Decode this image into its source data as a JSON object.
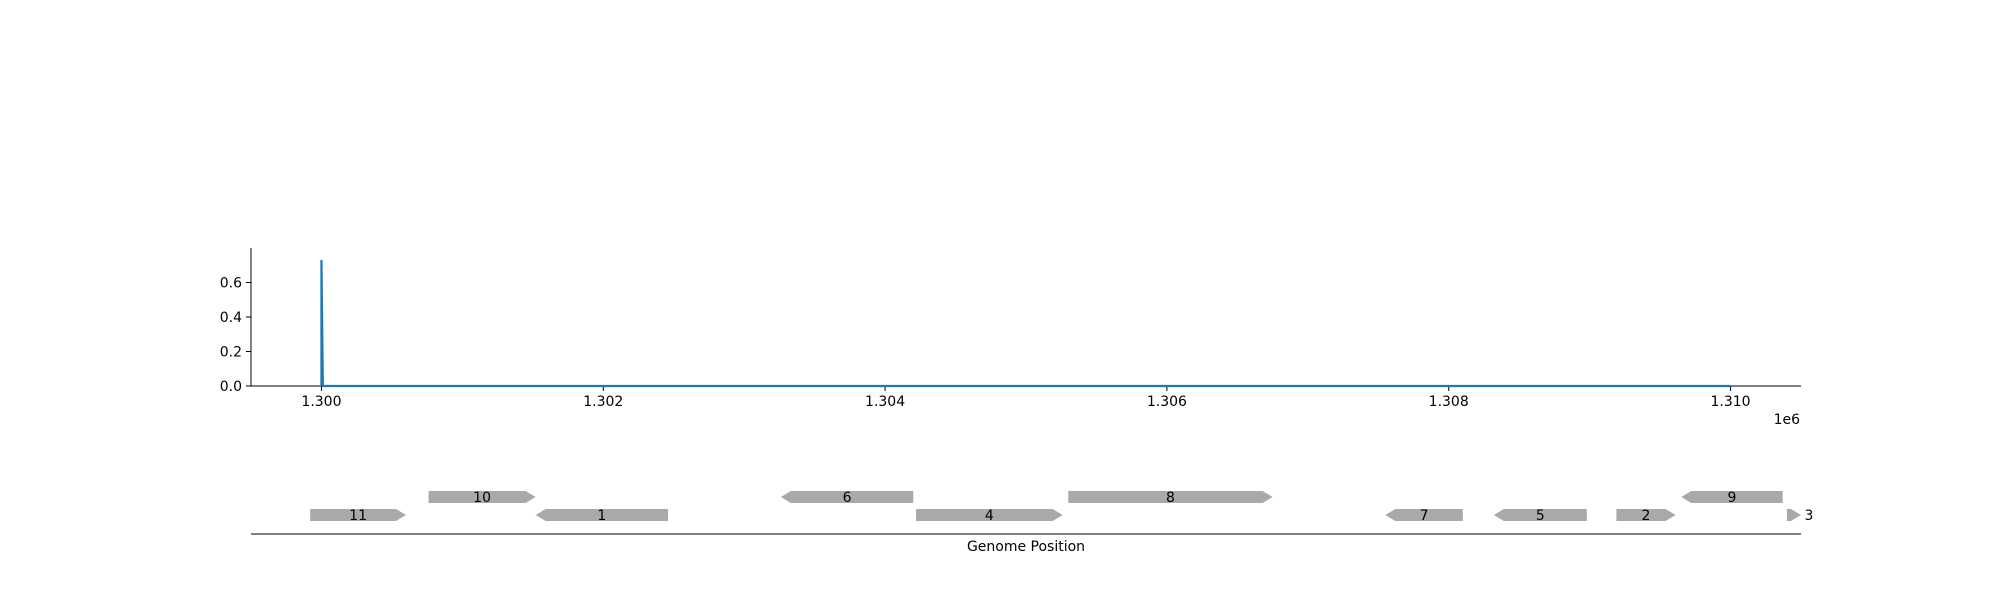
{
  "chart_data": [
    {
      "type": "line",
      "title": "",
      "xlabel": "",
      "ylabel": "",
      "x_offset_label": "1e6",
      "xlim": [
        1299500,
        1310500
      ],
      "ylim": [
        0,
        0.8
      ],
      "x_ticks": [
        1300000,
        1302000,
        1304000,
        1306000,
        1308000,
        1310000
      ],
      "x_tick_labels": [
        "1.300",
        "1.302",
        "1.304",
        "1.306",
        "1.308",
        "1.310"
      ],
      "y_ticks": [
        0.0,
        0.2,
        0.4,
        0.6
      ],
      "y_tick_labels": [
        "0.0",
        "0.2",
        "0.4",
        "0.6"
      ],
      "grid": false,
      "line_color": "#1f77b4",
      "series": [
        {
          "x": [
            1300000,
            1300000,
            1300010,
            1310000
          ],
          "y": [
            0.0,
            0.73,
            0.0,
            0.0
          ]
        }
      ]
    },
    {
      "type": "gene-track",
      "xlabel": "Genome Position",
      "xlim": [
        1299500,
        1310500
      ],
      "feature_color": "#a9a9a9",
      "features": [
        {
          "label": "11",
          "start": 1299920,
          "end": 1300600,
          "strand": 1,
          "row": 0
        },
        {
          "label": "10",
          "start": 1300760,
          "end": 1301520,
          "strand": 1,
          "row": 1
        },
        {
          "label": "1",
          "start": 1301520,
          "end": 1302460,
          "strand": -1,
          "row": 0
        },
        {
          "label": "6",
          "start": 1303260,
          "end": 1304200,
          "strand": -1,
          "row": 1
        },
        {
          "label": "4",
          "start": 1304220,
          "end": 1305260,
          "strand": 1,
          "row": 0
        },
        {
          "label": "8",
          "start": 1305300,
          "end": 1306750,
          "strand": 1,
          "row": 1
        },
        {
          "label": "7",
          "start": 1307550,
          "end": 1308100,
          "strand": -1,
          "row": 0
        },
        {
          "label": "5",
          "start": 1308320,
          "end": 1308980,
          "strand": -1,
          "row": 0
        },
        {
          "label": "2",
          "start": 1309190,
          "end": 1309610,
          "strand": 1,
          "row": 0
        },
        {
          "label": "9",
          "start": 1309650,
          "end": 1310370,
          "strand": -1,
          "row": 1
        },
        {
          "label": "3",
          "start": 1310400,
          "end": 1310500,
          "strand": 1,
          "row": 0
        }
      ]
    }
  ]
}
